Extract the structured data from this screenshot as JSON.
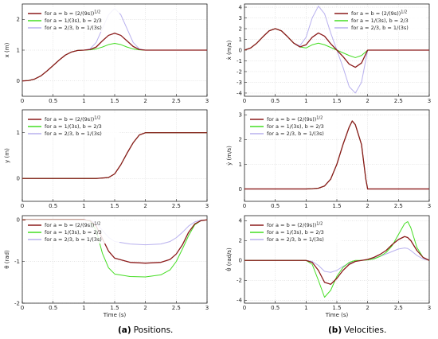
{
  "captions": {
    "left_label": "(a)",
    "left_text": "Positions.",
    "right_label": "(b)",
    "right_text": "Velocities."
  },
  "colors": {
    "series1": "#8b1a1a",
    "series2": "#44dd22",
    "series3": "#b8b0ee"
  },
  "legend": [
    {
      "base": "for a = b = (2/(9s))",
      "sup": "1/2"
    },
    {
      "base": "for a = 1/(3s), b = 2/3",
      "sup": ""
    },
    {
      "base": "for a = 2/3, b = 1/(3s)",
      "sup": ""
    }
  ],
  "chart_data": [
    {
      "id": "x-position",
      "type": "line",
      "ylabel": "x (m)",
      "xlabel": "",
      "xlim": [
        0,
        3
      ],
      "ylim": [
        -0.5,
        2.5
      ],
      "xticks": [
        "0",
        "0.5",
        "1",
        "1.5",
        "2",
        "2.5",
        "3"
      ],
      "yticks": [
        0,
        1,
        2
      ],
      "ytick_labels": [
        "0",
        "1",
        "2"
      ],
      "grid": true,
      "legend": "top-left",
      "series": [
        {
          "x": [
            0,
            0.1,
            0.2,
            0.3,
            0.4,
            0.5,
            0.6,
            0.7,
            0.8,
            0.9,
            1.0,
            1.1,
            1.2,
            1.3,
            1.4,
            1.5,
            1.6,
            1.7,
            1.8,
            1.9,
            2.0,
            2.5,
            3.0
          ],
          "y": [
            0,
            0.01,
            0.06,
            0.16,
            0.32,
            0.5,
            0.68,
            0.84,
            0.94,
            0.99,
            1.0,
            1.02,
            1.1,
            1.3,
            1.48,
            1.55,
            1.48,
            1.3,
            1.12,
            1.02,
            1.0,
            1.0,
            1.0
          ]
        },
        {
          "x": [
            0,
            0.1,
            0.2,
            0.3,
            0.4,
            0.5,
            0.6,
            0.7,
            0.8,
            0.9,
            1.0,
            1.1,
            1.2,
            1.3,
            1.4,
            1.5,
            1.6,
            1.7,
            1.8,
            1.9,
            2.0,
            2.5,
            3.0
          ],
          "y": [
            0,
            0.01,
            0.06,
            0.16,
            0.32,
            0.5,
            0.68,
            0.84,
            0.94,
            0.99,
            1.0,
            1.01,
            1.04,
            1.1,
            1.18,
            1.22,
            1.18,
            1.1,
            1.04,
            1.01,
            1.0,
            1.0,
            1.0
          ]
        },
        {
          "x": [
            0,
            0.1,
            0.2,
            0.3,
            0.4,
            0.5,
            0.6,
            0.7,
            0.8,
            0.9,
            1.0,
            1.1,
            1.2,
            1.3,
            1.4,
            1.5,
            1.6,
            1.7,
            1.8,
            1.9,
            2.0,
            2.5,
            3.0
          ],
          "y": [
            0,
            0.01,
            0.06,
            0.16,
            0.32,
            0.5,
            0.68,
            0.84,
            0.94,
            0.99,
            1.0,
            1.04,
            1.25,
            1.7,
            2.15,
            2.35,
            2.15,
            1.7,
            1.25,
            1.04,
            1.0,
            1.0,
            1.0
          ]
        }
      ]
    },
    {
      "id": "y-position",
      "type": "line",
      "ylabel": "y (m)",
      "xlabel": "",
      "xlim": [
        0,
        3
      ],
      "ylim": [
        -0.5,
        1.5
      ],
      "xticks": [
        "0",
        "0.5",
        "1",
        "1.5",
        "2",
        "2.5",
        "3"
      ],
      "yticks": [
        0,
        1
      ],
      "ytick_labels": [
        "0",
        "1"
      ],
      "grid": true,
      "legend": "top-left",
      "series": [
        {
          "x": [
            0,
            1.2,
            1.4,
            1.5,
            1.6,
            1.7,
            1.8,
            1.9,
            2.0,
            2.5,
            3.0
          ],
          "y": [
            0,
            0,
            0.02,
            0.1,
            0.3,
            0.55,
            0.78,
            0.95,
            1.0,
            1.0,
            1.0
          ]
        },
        {
          "x": [
            0,
            1.2,
            1.4,
            1.5,
            1.6,
            1.7,
            1.8,
            1.9,
            2.0,
            2.5,
            3.0
          ],
          "y": [
            0,
            0,
            0.02,
            0.1,
            0.3,
            0.55,
            0.78,
            0.95,
            1.0,
            1.0,
            1.0
          ]
        },
        {
          "x": [
            0,
            1.2,
            1.4,
            1.5,
            1.6,
            1.7,
            1.8,
            1.9,
            2.0,
            2.5,
            3.0
          ],
          "y": [
            0,
            0,
            0.02,
            0.1,
            0.3,
            0.55,
            0.78,
            0.95,
            1.0,
            1.0,
            1.0
          ]
        }
      ]
    },
    {
      "id": "theta-position",
      "type": "line",
      "ylabel": "θ (rad)",
      "xlabel": "Time (s)",
      "xlim": [
        0,
        3
      ],
      "ylim": [
        -2,
        0.1
      ],
      "xticks": [
        "0",
        "0.5",
        "1",
        "1.5",
        "2",
        "2.5",
        "3"
      ],
      "yticks": [
        -2,
        -1,
        0
      ],
      "ytick_labels": [
        "-2",
        "-1",
        "0"
      ],
      "grid": true,
      "legend": "top-left",
      "series": [
        {
          "x": [
            0,
            1.0,
            1.1,
            1.2,
            1.3,
            1.4,
            1.5,
            1.75,
            2.0,
            2.25,
            2.4,
            2.5,
            2.6,
            2.7,
            2.8,
            2.9,
            3.0
          ],
          "y": [
            0,
            0,
            -0.02,
            -0.15,
            -0.45,
            -0.75,
            -0.92,
            -1.02,
            -1.04,
            -1.02,
            -0.95,
            -0.82,
            -0.6,
            -0.3,
            -0.1,
            -0.02,
            0
          ]
        },
        {
          "x": [
            0,
            1.0,
            1.1,
            1.2,
            1.3,
            1.4,
            1.5,
            1.75,
            2.0,
            2.25,
            2.4,
            2.5,
            2.6,
            2.7,
            2.8,
            2.9,
            3.0
          ],
          "y": [
            0,
            0,
            -0.03,
            -0.25,
            -0.8,
            -1.15,
            -1.3,
            -1.36,
            -1.37,
            -1.32,
            -1.2,
            -1.0,
            -0.7,
            -0.38,
            -0.12,
            -0.02,
            0
          ]
        },
        {
          "x": [
            0,
            1.0,
            1.1,
            1.2,
            1.3,
            1.4,
            1.5,
            1.75,
            2.0,
            2.25,
            2.4,
            2.5,
            2.6,
            2.7,
            2.8,
            2.9,
            3.0
          ],
          "y": [
            0,
            0,
            -0.01,
            -0.08,
            -0.25,
            -0.42,
            -0.52,
            -0.58,
            -0.6,
            -0.58,
            -0.52,
            -0.43,
            -0.3,
            -0.15,
            -0.05,
            -0.01,
            0
          ]
        }
      ]
    },
    {
      "id": "x-velocity",
      "type": "line",
      "ylabel": "ẋ (m/s)",
      "xlabel": "",
      "xlim": [
        0,
        3
      ],
      "ylim": [
        -4.3,
        4.3
      ],
      "xticks": [
        "0",
        "0.5",
        "1",
        "1.5",
        "2",
        "2.5",
        "3"
      ],
      "yticks": [
        -4,
        -3,
        -2,
        -1,
        0,
        1,
        2,
        3,
        4
      ],
      "ytick_labels": [
        "-4",
        "-3",
        "-2",
        "-1",
        "0",
        "1",
        "2",
        "3",
        "4"
      ],
      "grid": true,
      "legend": "top-right",
      "series": [
        {
          "x": [
            0,
            0.1,
            0.2,
            0.3,
            0.4,
            0.5,
            0.6,
            0.7,
            0.8,
            0.9,
            1.0,
            1.1,
            1.2,
            1.3,
            1.4,
            1.5,
            1.6,
            1.7,
            1.8,
            1.9,
            2.0,
            2.5,
            3.0
          ],
          "y": [
            0,
            0.2,
            0.65,
            1.25,
            1.8,
            2.0,
            1.8,
            1.25,
            0.65,
            0.3,
            0.5,
            1.2,
            1.6,
            1.3,
            0.6,
            0,
            -0.6,
            -1.3,
            -1.6,
            -1.2,
            0,
            0,
            0
          ]
        },
        {
          "x": [
            0,
            0.1,
            0.2,
            0.3,
            0.4,
            0.5,
            0.6,
            0.7,
            0.8,
            0.9,
            1.0,
            1.1,
            1.2,
            1.3,
            1.4,
            1.5,
            1.6,
            1.7,
            1.8,
            1.9,
            2.0,
            2.5,
            3.0
          ],
          "y": [
            0,
            0.2,
            0.65,
            1.25,
            1.8,
            2.0,
            1.8,
            1.25,
            0.65,
            0.3,
            0.2,
            0.5,
            0.65,
            0.5,
            0.25,
            0,
            -0.25,
            -0.5,
            -0.7,
            -0.5,
            0,
            0,
            0
          ]
        },
        {
          "x": [
            0,
            0.1,
            0.2,
            0.3,
            0.4,
            0.5,
            0.6,
            0.7,
            0.8,
            0.9,
            1.0,
            1.1,
            1.2,
            1.3,
            1.4,
            1.5,
            1.6,
            1.7,
            1.8,
            1.9,
            2.0,
            2.5,
            3.0
          ],
          "y": [
            0,
            0.2,
            0.65,
            1.25,
            1.8,
            2.0,
            1.8,
            1.25,
            0.65,
            0.4,
            1.2,
            3.0,
            4.1,
            3.4,
            1.6,
            0,
            -1.6,
            -3.4,
            -4.0,
            -3.0,
            0,
            0,
            0
          ]
        }
      ]
    },
    {
      "id": "y-velocity",
      "type": "line",
      "ylabel": "ẏ (m/s)",
      "xlabel": "",
      "xlim": [
        0,
        3
      ],
      "ylim": [
        -0.5,
        3.2
      ],
      "xticks": [
        "0",
        "0.5",
        "1",
        "1.5",
        "2",
        "2.5",
        "3"
      ],
      "yticks": [
        0,
        1,
        2,
        3
      ],
      "ytick_labels": [
        "0",
        "1",
        "2",
        "3"
      ],
      "grid": true,
      "legend": "top-left",
      "series": [
        {
          "x": [
            0,
            1.0,
            1.1,
            1.2,
            1.3,
            1.4,
            1.5,
            1.6,
            1.7,
            1.75,
            1.8,
            1.9,
            1.97,
            2.0,
            2.5,
            3.0
          ],
          "y": [
            0,
            0,
            0.01,
            0.03,
            0.12,
            0.4,
            1.0,
            1.8,
            2.5,
            2.75,
            2.6,
            1.8,
            0.4,
            0,
            0,
            0
          ]
        },
        {
          "x": [
            0,
            1.0,
            1.1,
            1.2,
            1.3,
            1.4,
            1.5,
            1.6,
            1.7,
            1.75,
            1.8,
            1.9,
            1.97,
            2.0,
            2.5,
            3.0
          ],
          "y": [
            0,
            0,
            0.01,
            0.03,
            0.12,
            0.4,
            1.0,
            1.8,
            2.5,
            2.75,
            2.6,
            1.8,
            0.4,
            0,
            0,
            0
          ]
        },
        {
          "x": [
            0,
            1.0,
            1.1,
            1.2,
            1.3,
            1.4,
            1.5,
            1.6,
            1.7,
            1.75,
            1.8,
            1.9,
            1.97,
            2.0,
            2.5,
            3.0
          ],
          "y": [
            0,
            0,
            0.01,
            0.03,
            0.12,
            0.4,
            1.0,
            1.8,
            2.5,
            2.75,
            2.6,
            1.8,
            0.4,
            0,
            0,
            0
          ]
        }
      ]
    },
    {
      "id": "theta-velocity",
      "type": "line",
      "ylabel": "θ̇ (rad/s)",
      "xlabel": "Time (s)",
      "xlim": [
        0,
        3
      ],
      "ylim": [
        -4.3,
        4.5
      ],
      "xticks": [
        "0",
        "0.5",
        "1",
        "1.5",
        "2",
        "2.5",
        "3"
      ],
      "yticks": [
        -4,
        -2,
        0,
        2,
        4
      ],
      "ytick_labels": [
        "-4",
        "-2",
        "0",
        "2",
        "4"
      ],
      "grid": true,
      "legend": "top-left",
      "series": [
        {
          "x": [
            0,
            1.0,
            1.1,
            1.2,
            1.3,
            1.4,
            1.5,
            1.6,
            1.7,
            1.8,
            1.9,
            2.0,
            2.1,
            2.2,
            2.3,
            2.4,
            2.5,
            2.6,
            2.65,
            2.7,
            2.8,
            2.9,
            3.0
          ],
          "y": [
            0,
            0,
            -0.2,
            -1.0,
            -2.2,
            -2.4,
            -1.8,
            -1.0,
            -0.4,
            -0.1,
            0,
            0.1,
            0.3,
            0.6,
            1.0,
            1.6,
            2.1,
            2.4,
            2.3,
            2.0,
            1.0,
            0.3,
            0
          ]
        },
        {
          "x": [
            0,
            1.0,
            1.1,
            1.2,
            1.3,
            1.4,
            1.5,
            1.6,
            1.7,
            1.8,
            1.9,
            2.0,
            2.1,
            2.2,
            2.3,
            2.4,
            2.5,
            2.6,
            2.65,
            2.7,
            2.8,
            2.9,
            3.0
          ],
          "y": [
            0,
            0,
            -0.4,
            -2.0,
            -3.7,
            -3.0,
            -1.6,
            -0.7,
            -0.2,
            0,
            0,
            0.05,
            0.15,
            0.4,
            0.8,
            1.5,
            2.6,
            3.7,
            3.9,
            3.3,
            1.3,
            0.3,
            0
          ]
        },
        {
          "x": [
            0,
            1.0,
            1.1,
            1.2,
            1.3,
            1.4,
            1.5,
            1.6,
            1.7,
            1.8,
            1.9,
            2.0,
            2.1,
            2.2,
            2.3,
            2.4,
            2.5,
            2.6,
            2.65,
            2.7,
            2.8,
            2.9,
            3.0
          ],
          "y": [
            0,
            0,
            -0.1,
            -0.5,
            -1.1,
            -1.2,
            -1.0,
            -0.6,
            -0.3,
            -0.1,
            0,
            0.05,
            0.2,
            0.4,
            0.65,
            0.9,
            1.15,
            1.25,
            1.2,
            1.0,
            0.5,
            0.15,
            0
          ]
        }
      ]
    }
  ]
}
